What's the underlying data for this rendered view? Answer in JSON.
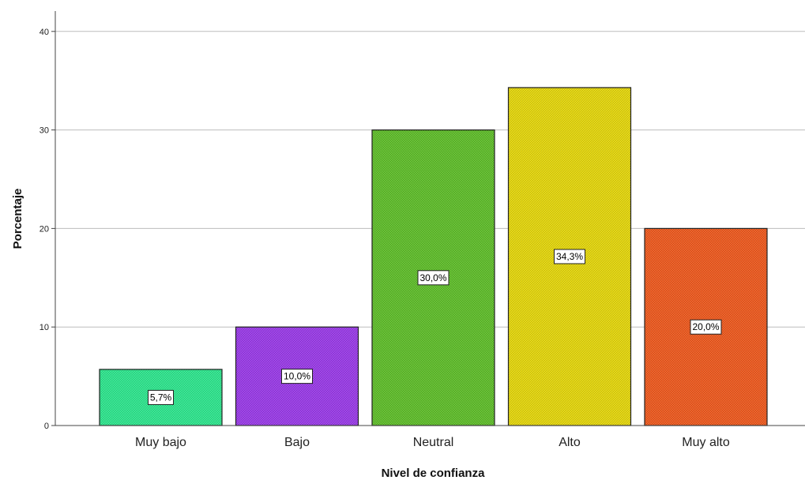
{
  "chart_data": {
    "type": "bar",
    "categories": [
      "Muy bajo",
      "Bajo",
      "Neutral",
      "Alto",
      "Muy alto"
    ],
    "values": [
      5.7,
      10.0,
      30.0,
      34.3,
      20.0
    ],
    "data_labels": [
      "5,7%",
      "10,0%",
      "30,0%",
      "34,3%",
      "20,0%"
    ],
    "colors": [
      "#2ee88f",
      "#9b3bea",
      "#5fbf2a",
      "#e6d80b",
      "#f05a1e"
    ],
    "title": "",
    "xlabel": "Nivel de confianza",
    "ylabel": "Porcentaje",
    "ylim": [
      0,
      42
    ],
    "yticks": [
      0,
      10,
      20,
      30,
      40
    ],
    "ytick_labels": [
      "0",
      "10",
      "20",
      "30",
      "40"
    ],
    "grid": true,
    "legend": "none",
    "bar_pattern": "crosshatch"
  }
}
